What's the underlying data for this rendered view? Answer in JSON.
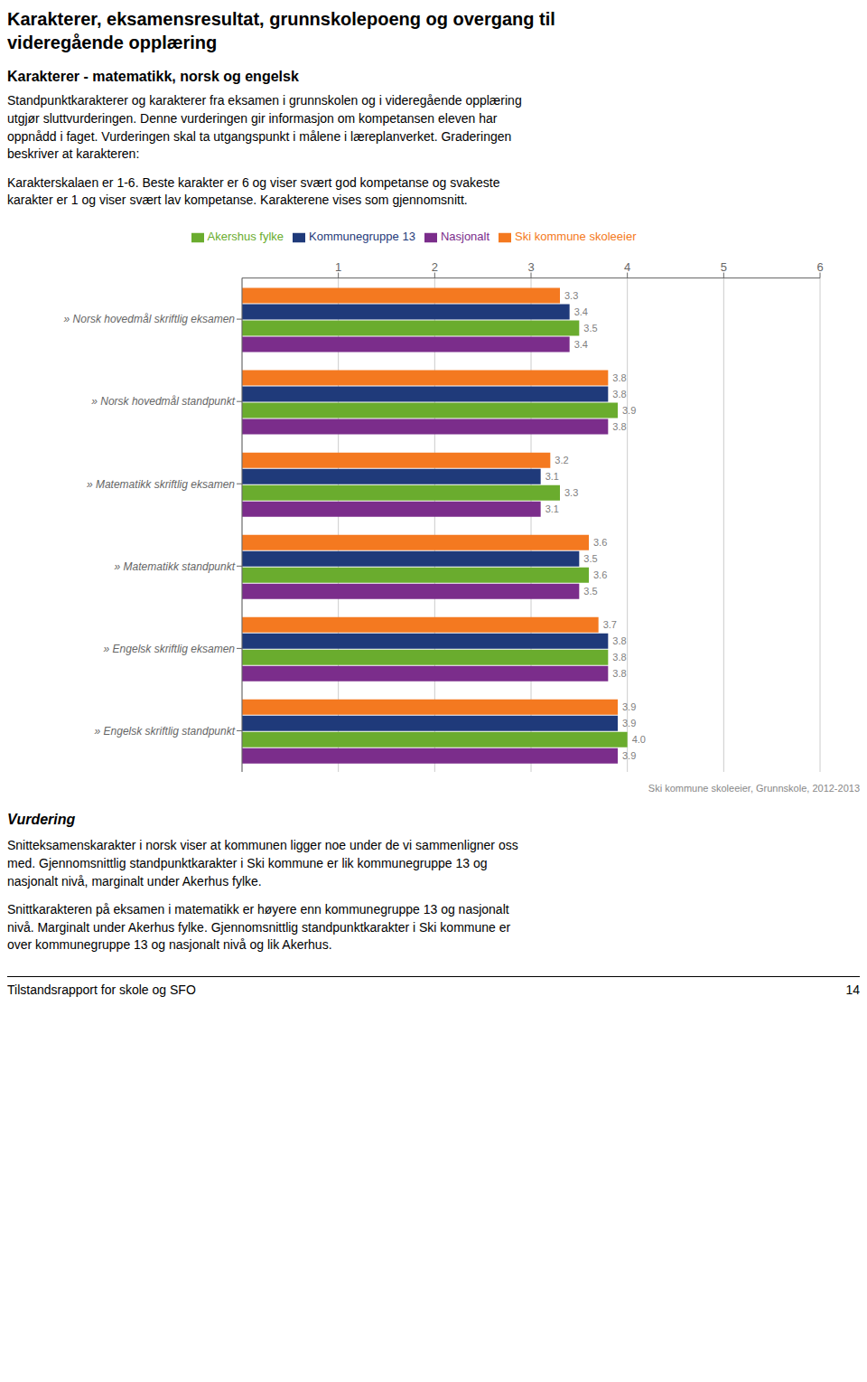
{
  "chart_data": {
    "type": "bar",
    "orientation": "horizontal",
    "title": "Karakterer, eksamensresultat, grunnskolepoeng og overgang til\nvideregående opplæring",
    "subtitle": "Karakterer - matematikk, norsk og engelsk",
    "annotations": [
      "Standpunktkarakterer og karakterer fra eksamen i grunnskolen og i videregående opplæring\nutgjør sluttvurderingen. Denne vurderingen gir informasjon om kompetansen eleven har\noppnådd i faget. Vurderingen skal ta utgangspunkt i målene i læreplanverket. Graderingen\nbeskriver at karakteren:",
      "Karakterskalaen er 1-6. Beste karakter er 6 og viser svært god kompetanse og svakeste\nkarakter er 1 og viser svært lav kompetanse. Karakterene vises som gjennomsnitt.",
      "Ski kommune skoleeier, Grunnskole, 2012-2013",
      "Vurdering",
      "Snitteksamenskarakter i norsk viser at kommunen ligger noe under de vi sammenligner oss\nmed. Gjennomsnittlig standpunktkarakter i Ski kommune er lik kommunegruppe 13 og\nnasjonalt nivå, marginalt under Akerhus fylke.",
      "Snittkarakteren på eksamen i matematikk er høyere enn kommunegruppe 13 og nasjonalt\nnivå. Marginalt under Akerhus fylke. Gjennomsnittlig standpunktkarakter i Ski kommune er\nover kommunegruppe 13 og nasjonalt nivå og lik Akerhus.",
      "Tilstandsrapport for skole og SFO",
      "14"
    ],
    "categories": [
      "» Norsk hovedmål skriftlig eksamen",
      "» Norsk hovedmål standpunkt",
      "» Matematikk skriftlig eksamen",
      "» Matematikk standpunkt",
      "» Engelsk skriftlig eksamen",
      "» Engelsk skriftlig standpunkt"
    ],
    "series": [
      {
        "name": "Ski kommune skoleeier",
        "color": "#F47920",
        "values": [
          3.3,
          3.8,
          3.2,
          3.6,
          3.7,
          3.9
        ],
        "value_labels": [
          "3.3",
          "3.8",
          "3.2",
          "3.6",
          "3.7",
          "3.9"
        ]
      },
      {
        "name": "Kommunegruppe 13",
        "color": "#1F3A7A",
        "values": [
          3.4,
          3.8,
          3.1,
          3.5,
          3.8,
          3.9
        ],
        "value_labels": [
          "3.4",
          "3.8",
          "3.1",
          "3.5",
          "3.8",
          "3.9"
        ]
      },
      {
        "name": "Akershus fylke",
        "color": "#6AAC2E",
        "values": [
          3.5,
          3.9,
          3.3,
          3.6,
          3.8,
          4.0
        ],
        "value_labels": [
          "3.5",
          "3.9",
          "3.3",
          "3.6",
          "3.8",
          "4.0"
        ]
      },
      {
        "name": "Nasjonalt",
        "color": "#7B2D8B",
        "values": [
          3.4,
          3.8,
          3.1,
          3.5,
          3.8,
          3.9
        ],
        "value_labels": [
          "3.4",
          "3.8",
          "3.1",
          "3.5",
          "3.8",
          "3.9"
        ]
      }
    ],
    "xlim": [
      0,
      6
    ],
    "xticks": [
      1,
      2,
      3,
      4,
      5,
      6
    ],
    "grid": true,
    "legend": "top",
    "data_labels": true
  }
}
